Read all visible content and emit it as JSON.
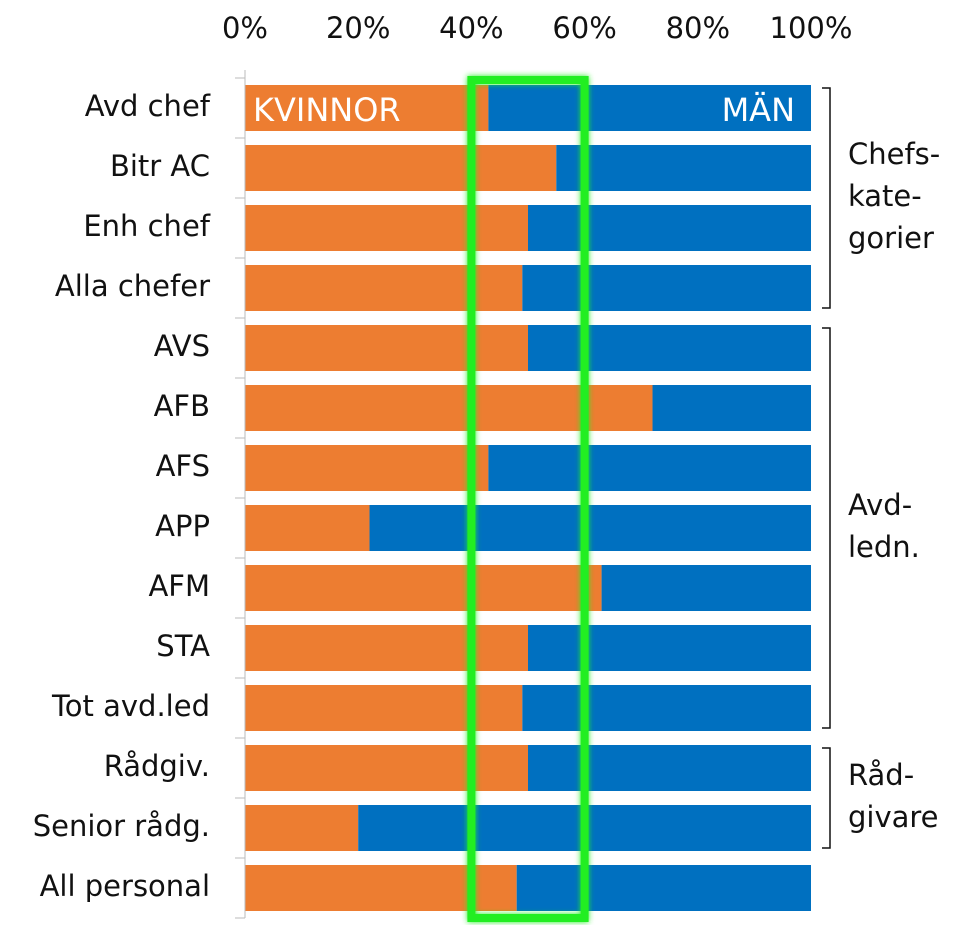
{
  "chart_data": {
    "type": "stacked_bar_horizontal",
    "categories": [
      "Avd chef",
      "Bitr AC",
      "Enh chef",
      "Alla chefer",
      "AVS",
      "AFB",
      "AFS",
      "APP",
      "AFM",
      "STA",
      "Tot avd.led",
      "Rådgiv.",
      "Senior rådg.",
      "All personal"
    ],
    "series": [
      {
        "name": "KVINNOR",
        "color": "#ed7d31",
        "values": [
          43,
          55,
          50,
          49,
          50,
          72,
          43,
          22,
          63,
          50,
          49,
          50,
          20,
          48
        ]
      },
      {
        "name": "MÄN",
        "color": "#0070c0",
        "values": [
          57,
          45,
          50,
          51,
          50,
          28,
          57,
          78,
          37,
          50,
          51,
          50,
          80,
          52
        ]
      }
    ],
    "xlim": [
      0,
      100
    ],
    "xticks": [
      {
        "value": 0,
        "label": "0%"
      },
      {
        "value": 20,
        "label": "20%"
      },
      {
        "value": 40,
        "label": "40%"
      },
      {
        "value": 60,
        "label": "60%"
      },
      {
        "value": 80,
        "label": "80%"
      },
      {
        "value": 100,
        "label": "100%"
      }
    ],
    "highlight": {
      "range": [
        40,
        60
      ],
      "color": "#22ee22"
    },
    "groups": [
      {
        "lines": [
          "Chefs-",
          "kate-",
          "gorier"
        ],
        "first": 0,
        "last": 3
      },
      {
        "lines": [
          "Avd-",
          "ledn."
        ],
        "first": 4,
        "last": 10
      },
      {
        "lines": [
          "Råd-",
          "givare"
        ],
        "first": 11,
        "last": 12
      }
    ]
  }
}
